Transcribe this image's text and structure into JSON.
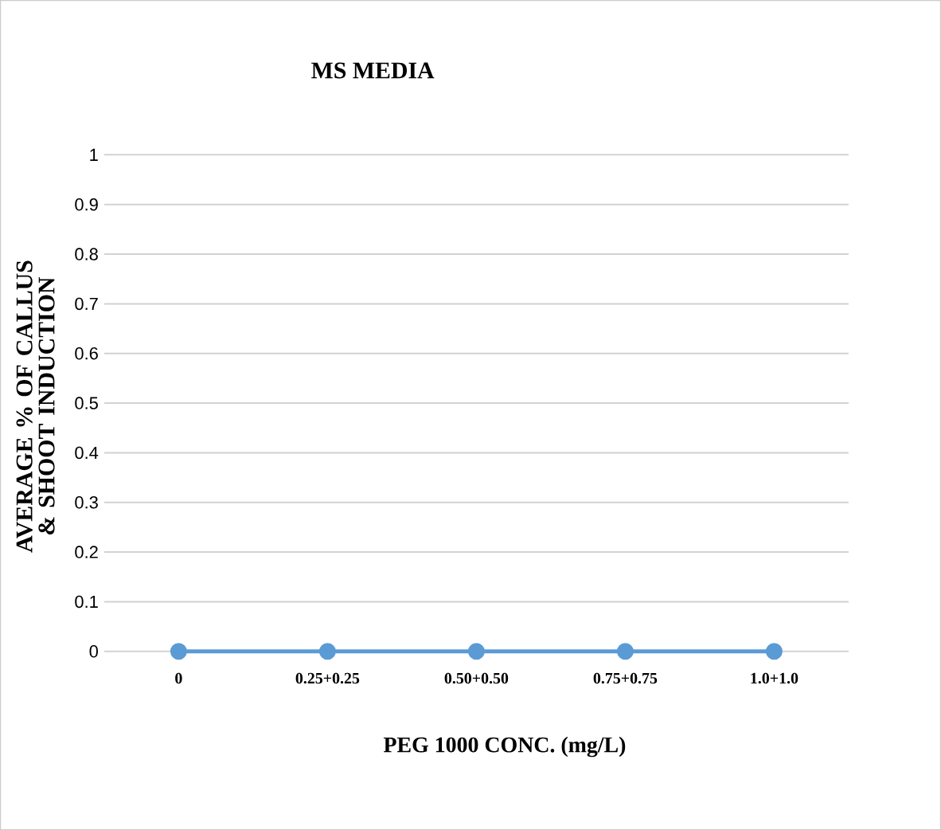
{
  "chart_data": {
    "type": "line",
    "title": "MS MEDIA",
    "xlabel": "PEG 1000 CONC. (mg/L)",
    "ylabel": "AVERAGE % OF CALLUS & SHOOT INDUCTION",
    "categories": [
      "0",
      "0.25+0.25",
      "0.50+0.50",
      "0.75+0.75",
      "1.0+1.0"
    ],
    "series": [
      {
        "color": "#5b9bd5",
        "values": [
          0,
          0,
          0,
          0,
          0
        ]
      }
    ],
    "ylim": [
      0,
      1
    ],
    "yticks": [
      0,
      0.1,
      0.2,
      0.3,
      0.4,
      0.5,
      0.6,
      0.7,
      0.8,
      0.9,
      1
    ],
    "grid": "y",
    "marker": "circle",
    "line_style": "solid"
  }
}
